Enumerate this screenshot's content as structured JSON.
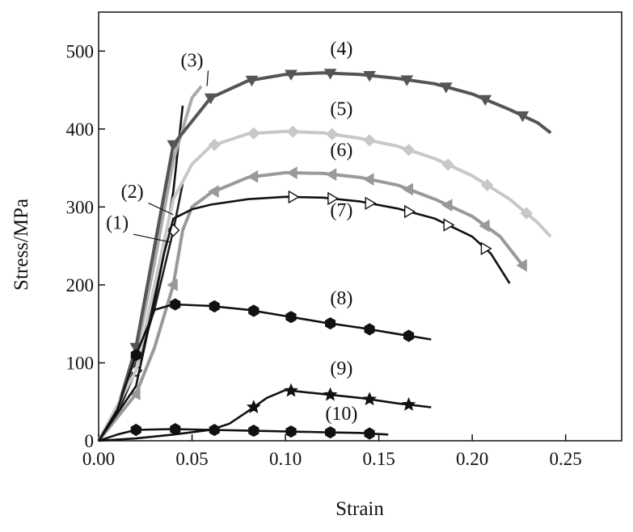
{
  "chart_data": {
    "type": "line",
    "xlabel": "Strain",
    "ylabel": "Stress/MPa",
    "xlim": [
      0.0,
      0.28
    ],
    "ylim": [
      0,
      550
    ],
    "xticks": [
      0.0,
      0.05,
      0.1,
      0.15,
      0.2,
      0.25
    ],
    "xtick_labels": [
      "0.00",
      "0.05",
      "0.10",
      "0.15",
      "0.20",
      "0.25"
    ],
    "yticks": [
      0,
      100,
      200,
      300,
      400,
      500
    ],
    "ytick_labels": [
      "0",
      "100",
      "200",
      "300",
      "400",
      "500"
    ],
    "grid": false,
    "series": [
      {
        "name": "(1)",
        "color": "#111111",
        "marker": "none",
        "x": [
          0.0,
          0.01,
          0.02,
          0.025,
          0.03,
          0.035,
          0.04,
          0.045
        ],
        "y": [
          0,
          40,
          100,
          140,
          190,
          250,
          320,
          430
        ],
        "label_x": 0.01,
        "label_y": 272
      },
      {
        "name": "(2)",
        "color": "#222222",
        "marker": "diamond-open",
        "x": [
          0.0,
          0.01,
          0.02,
          0.03,
          0.04,
          0.045
        ],
        "y": [
          0,
          35,
          90,
          170,
          270,
          330
        ],
        "markers_x": [
          0.02,
          0.04
        ],
        "label_x": 0.018,
        "label_y": 312
      },
      {
        "name": "(3)",
        "color": "#aaaaaa",
        "marker": "diamond",
        "x": [
          0.0,
          0.01,
          0.02,
          0.03,
          0.04,
          0.05,
          0.055
        ],
        "y": [
          0,
          40,
          110,
          230,
          360,
          440,
          455
        ],
        "markers_x": [],
        "label_x": 0.05,
        "label_y": 480
      },
      {
        "name": "(4)",
        "color": "#555555",
        "marker": "triangle-down",
        "x": [
          0.0,
          0.01,
          0.02,
          0.03,
          0.04,
          0.05,
          0.06,
          0.08,
          0.1,
          0.12,
          0.14,
          0.16,
          0.18,
          0.2,
          0.22,
          0.235,
          0.242
        ],
        "y": [
          0,
          40,
          120,
          250,
          380,
          410,
          440,
          462,
          470,
          472,
          470,
          465,
          458,
          445,
          425,
          408,
          395
        ],
        "markers_x": [
          0.02,
          0.04,
          0.06,
          0.082,
          0.103,
          0.124,
          0.145,
          0.165,
          0.186,
          0.207,
          0.227
        ],
        "label_x": 0.13,
        "label_y": 495
      },
      {
        "name": "(5)",
        "color": "#c8c8c8",
        "marker": "diamond",
        "x": [
          0.0,
          0.02,
          0.04,
          0.05,
          0.06,
          0.08,
          0.1,
          0.12,
          0.14,
          0.16,
          0.18,
          0.2,
          0.22,
          0.235,
          0.242
        ],
        "y": [
          0,
          90,
          310,
          355,
          378,
          394,
          397,
          395,
          388,
          378,
          362,
          340,
          310,
          280,
          262
        ],
        "markers_x": [
          0.062,
          0.083,
          0.104,
          0.125,
          0.145,
          0.166,
          0.187,
          0.208,
          0.229
        ],
        "label_x": 0.13,
        "label_y": 418
      },
      {
        "name": "(6)",
        "color": "#999999",
        "marker": "triangle-left",
        "x": [
          0.0,
          0.02,
          0.03,
          0.04,
          0.045,
          0.05,
          0.06,
          0.08,
          0.1,
          0.12,
          0.14,
          0.16,
          0.18,
          0.2,
          0.215,
          0.228
        ],
        "y": [
          0,
          60,
          120,
          200,
          270,
          300,
          318,
          338,
          344,
          343,
          338,
          328,
          310,
          288,
          262,
          222
        ],
        "markers_x": [
          0.02,
          0.04,
          0.062,
          0.083,
          0.104,
          0.125,
          0.145,
          0.166,
          0.187,
          0.207,
          0.227
        ],
        "label_x": 0.13,
        "label_y": 365
      },
      {
        "name": "(7)",
        "color": "#111111",
        "marker": "triangle-right-open",
        "x": [
          0.0,
          0.02,
          0.03,
          0.035,
          0.04,
          0.05,
          0.06,
          0.08,
          0.1,
          0.12,
          0.14,
          0.16,
          0.18,
          0.2,
          0.21,
          0.22
        ],
        "y": [
          0,
          70,
          180,
          240,
          285,
          297,
          303,
          310,
          313,
          312,
          307,
          298,
          285,
          262,
          240,
          202
        ],
        "markers_x": [
          0.104,
          0.125,
          0.145,
          0.166,
          0.187,
          0.207
        ],
        "label_x": 0.13,
        "label_y": 288
      },
      {
        "name": "(8)",
        "color": "#111111",
        "marker": "hexagon",
        "x": [
          0.0,
          0.01,
          0.02,
          0.03,
          0.04,
          0.06,
          0.08,
          0.1,
          0.12,
          0.14,
          0.16,
          0.178
        ],
        "y": [
          0,
          40,
          110,
          168,
          175,
          173,
          168,
          160,
          152,
          145,
          137,
          130
        ],
        "markers_x": [
          0.02,
          0.041,
          0.062,
          0.083,
          0.103,
          0.124,
          0.145,
          0.166
        ],
        "label_x": 0.13,
        "label_y": 175
      },
      {
        "name": "(9)",
        "color": "#111111",
        "marker": "star",
        "x": [
          0.0,
          0.02,
          0.04,
          0.06,
          0.07,
          0.08,
          0.09,
          0.1,
          0.12,
          0.14,
          0.16,
          0.178
        ],
        "y": [
          0,
          3,
          8,
          14,
          22,
          38,
          55,
          65,
          60,
          55,
          48,
          43
        ],
        "markers_x": [
          0.083,
          0.103,
          0.124,
          0.145,
          0.166
        ],
        "label_x": 0.13,
        "label_y": 85
      },
      {
        "name": "(10)",
        "color": "#111111",
        "marker": "hexagon",
        "x": [
          0.0,
          0.01,
          0.02,
          0.04,
          0.06,
          0.08,
          0.1,
          0.12,
          0.14,
          0.155
        ],
        "y": [
          0,
          8,
          14,
          15,
          14,
          13,
          12,
          11,
          10,
          8
        ],
        "markers_x": [
          0.02,
          0.041,
          0.062,
          0.083,
          0.103,
          0.124,
          0.145
        ],
        "label_x": 0.13,
        "label_y": 27
      }
    ]
  }
}
